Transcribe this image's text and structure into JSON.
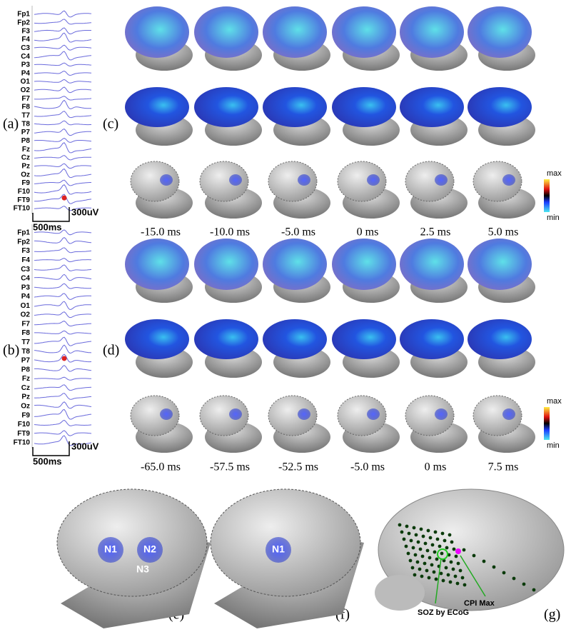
{
  "panels": {
    "a": {
      "label": "(a)",
      "channels": [
        "Fp1",
        "Fp2",
        "F3",
        "F4",
        "C3",
        "C4",
        "P3",
        "P4",
        "O1",
        "O2",
        "F7",
        "F8",
        "T7",
        "T8",
        "P7",
        "P8",
        "Fz",
        "Cz",
        "Pz",
        "Oz",
        "F9",
        "F10",
        "FT9",
        "FT10"
      ],
      "time_scale": "500ms",
      "amp_scale": "300uV"
    },
    "b": {
      "label": "(b)",
      "channels": [
        "Fp1",
        "Fp2",
        "F3",
        "F4",
        "C3",
        "C4",
        "P3",
        "P4",
        "O1",
        "O2",
        "F7",
        "F8",
        "T7",
        "T8",
        "P7",
        "P8",
        "Fz",
        "Cz",
        "Pz",
        "Oz",
        "F9",
        "F10",
        "FT9",
        "FT10"
      ],
      "time_scale": "500ms",
      "amp_scale": "300uV"
    },
    "c": {
      "label": "(c)",
      "times": [
        "-15.0 ms",
        "-10.0 ms",
        "-5.0 ms",
        "0 ms",
        "2.5 ms",
        "5.0 ms"
      ],
      "colorbar_max": "max",
      "colorbar_min": "min"
    },
    "d": {
      "label": "(d)",
      "times": [
        "-65.0 ms",
        "-57.5 ms",
        "-52.5 ms",
        "-5.0 ms",
        "0 ms",
        "7.5 ms"
      ],
      "colorbar_max": "max",
      "colorbar_min": "min"
    },
    "e": {
      "label": "(e)",
      "sources": [
        "N1",
        "N2",
        "N3"
      ]
    },
    "f": {
      "label": "(f)",
      "sources": [
        "N1"
      ]
    },
    "g": {
      "label": "(g)",
      "annotations": [
        "SOZ by ECoG",
        "CPI Max"
      ]
    }
  }
}
